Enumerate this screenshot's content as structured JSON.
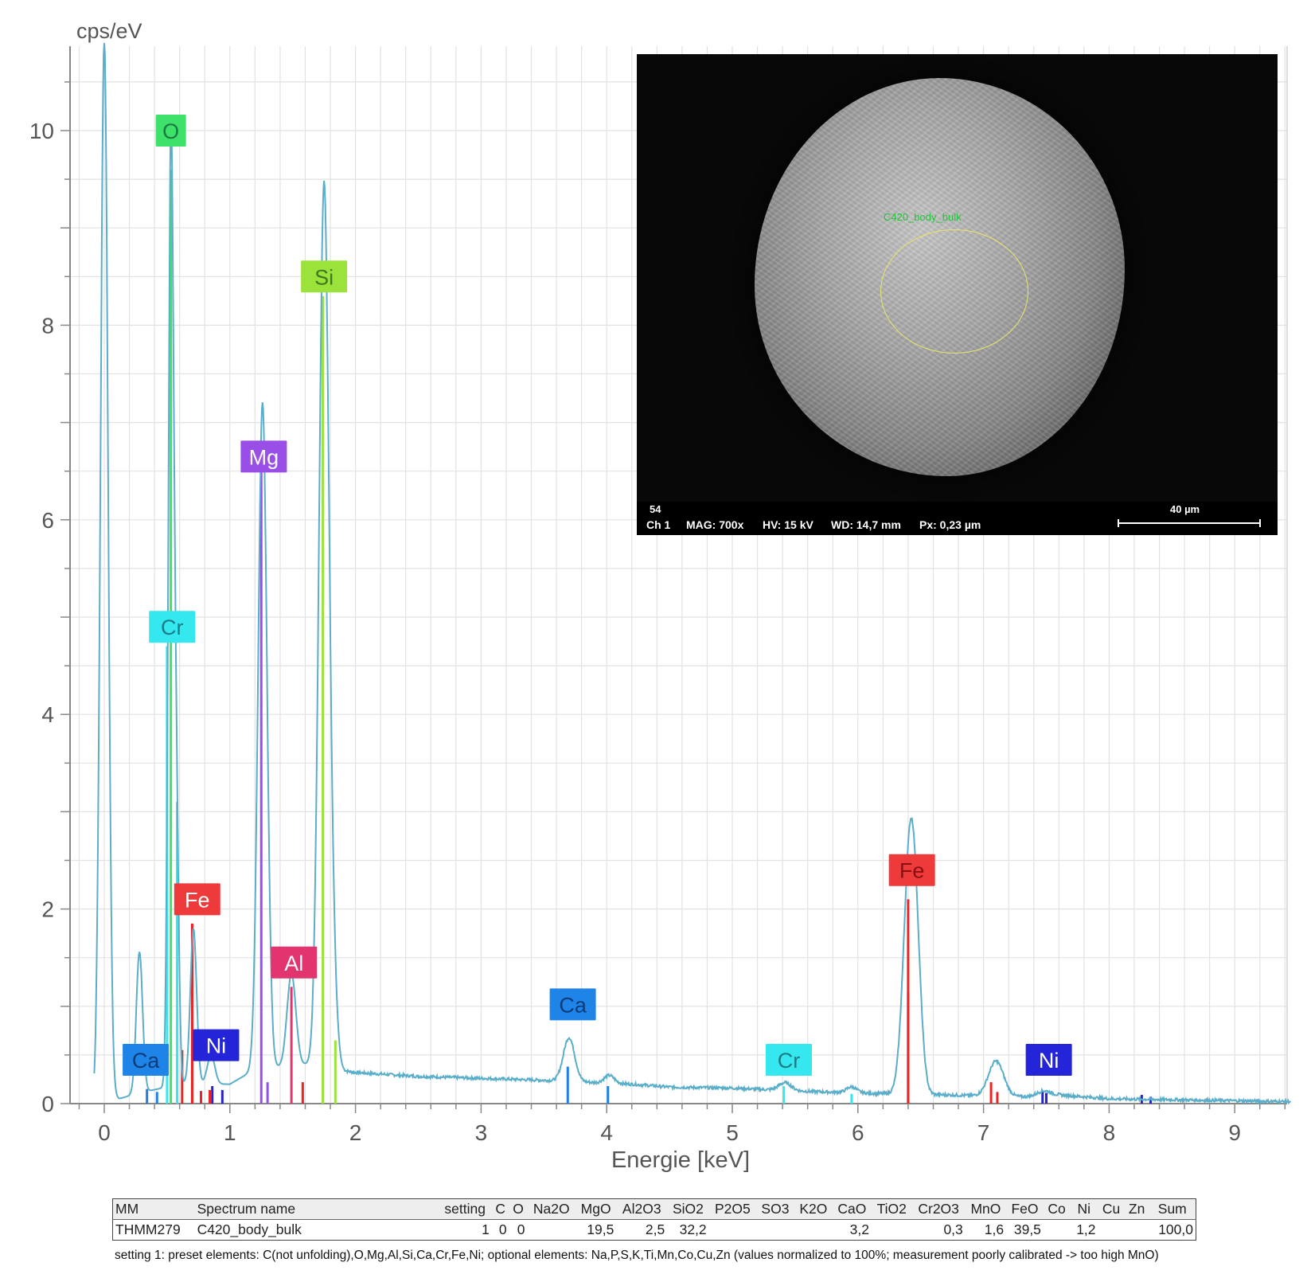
{
  "chart_data": {
    "type": "line",
    "ylabel": "cps/eV",
    "xlabel": "Energie [keV]",
    "xlim": [
      -0.2,
      9.45
    ],
    "ylim": [
      0,
      10.9
    ],
    "x_ticks": [
      "0",
      "1",
      "2",
      "3",
      "4",
      "5",
      "6",
      "7",
      "8",
      "9"
    ],
    "y_ticks": [
      "0",
      "2",
      "4",
      "6",
      "8",
      "10"
    ],
    "grid": true,
    "spectrum": {
      "color": "#5aaec9",
      "baseline": [
        [
          -0.08,
          0
        ],
        [
          0.02,
          0.05
        ],
        [
          0.12,
          0.05
        ],
        [
          0.25,
          0.1
        ],
        [
          0.6,
          0.2
        ],
        [
          1.0,
          0.2
        ],
        [
          1.2,
          0.35
        ],
        [
          1.6,
          0.4
        ],
        [
          2.0,
          0.32
        ],
        [
          2.5,
          0.28
        ],
        [
          3.0,
          0.26
        ],
        [
          3.5,
          0.24
        ],
        [
          4.2,
          0.2
        ],
        [
          4.5,
          0.17
        ],
        [
          5.0,
          0.16
        ],
        [
          5.5,
          0.13
        ],
        [
          6.0,
          0.11
        ],
        [
          6.3,
          0.1
        ],
        [
          6.7,
          0.09
        ],
        [
          7.3,
          0.07
        ],
        [
          7.6,
          0.09
        ],
        [
          8.0,
          0.05
        ],
        [
          8.5,
          0.04
        ],
        [
          9.0,
          0.03
        ],
        [
          9.45,
          0.02
        ]
      ],
      "peaks": [
        {
          "e": 0.0,
          "h": 10.9,
          "w": 0.03
        },
        {
          "e": 0.28,
          "h": 1.45,
          "w": 0.025
        },
        {
          "e": 0.53,
          "h": 9.5,
          "w": 0.02
        },
        {
          "e": 0.57,
          "h": 3.2,
          "w": 0.02
        },
        {
          "e": 0.71,
          "h": 1.6,
          "w": 0.025
        },
        {
          "e": 0.85,
          "h": 0.3,
          "w": 0.03
        },
        {
          "e": 1.26,
          "h": 6.85,
          "w": 0.035
        },
        {
          "e": 1.49,
          "h": 0.95,
          "w": 0.035
        },
        {
          "e": 1.75,
          "h": 9.1,
          "w": 0.04
        },
        {
          "e": 1.83,
          "h": 0.5,
          "w": 0.03
        },
        {
          "e": 3.7,
          "h": 0.45,
          "w": 0.045
        },
        {
          "e": 4.02,
          "h": 0.08,
          "w": 0.04
        },
        {
          "e": 5.42,
          "h": 0.08,
          "w": 0.05
        },
        {
          "e": 5.95,
          "h": 0.06,
          "w": 0.04
        },
        {
          "e": 6.41,
          "h": 2.2,
          "w": 0.05
        },
        {
          "e": 6.46,
          "h": 1.0,
          "w": 0.045
        },
        {
          "e": 7.1,
          "h": 0.36,
          "w": 0.06
        },
        {
          "e": 7.48,
          "h": 0.05,
          "w": 0.05
        }
      ]
    },
    "element_lines": [
      {
        "element": "O",
        "color": "#3ee26a",
        "lines": [
          [
            0.53,
            9.6
          ]
        ]
      },
      {
        "element": "Si",
        "color": "#9be23a",
        "lines": [
          [
            1.74,
            8.3
          ],
          [
            1.84,
            0.65
          ]
        ]
      },
      {
        "element": "Mg",
        "color": "#9a4ee8",
        "lines": [
          [
            1.25,
            6.55
          ],
          [
            1.3,
            0.22
          ]
        ]
      },
      {
        "element": "Cr",
        "color": "#35e8ef",
        "lines": [
          [
            0.5,
            4.7
          ],
          [
            0.58,
            3.1
          ],
          [
            5.41,
            0.18
          ],
          [
            5.95,
            0.1
          ]
        ]
      },
      {
        "element": "Fe",
        "color": "#ee2222",
        "lines": [
          [
            0.62,
            0.55
          ],
          [
            0.7,
            1.85
          ],
          [
            0.77,
            0.13
          ],
          [
            6.4,
            2.1
          ],
          [
            6.4,
            1.15
          ],
          [
            7.06,
            0.22
          ],
          [
            7.11,
            0.12
          ],
          [
            0.84,
            0.14
          ],
          [
            1.58,
            0.22
          ]
        ]
      },
      {
        "element": "Al",
        "color": "#e2346e",
        "lines": [
          [
            1.49,
            1.2
          ]
        ]
      },
      {
        "element": "Ca",
        "color": "#1f7fe6",
        "lines": [
          [
            3.69,
            0.38
          ],
          [
            4.01,
            0.18
          ],
          [
            0.34,
            0.15
          ],
          [
            0.42,
            0.12
          ]
        ]
      },
      {
        "element": "Ni",
        "color": "#2424d0",
        "lines": [
          [
            0.86,
            0.18
          ],
          [
            0.94,
            0.14
          ],
          [
            7.47,
            0.13
          ],
          [
            7.5,
            0.11
          ],
          [
            8.26,
            0.09
          ],
          [
            8.33,
            0.07
          ]
        ]
      }
    ],
    "labels": [
      {
        "text": "O",
        "e": 0.53,
        "y": 10.0,
        "color": "#3ee26a",
        "text_color": "#1a7a44"
      },
      {
        "text": "Si",
        "e": 1.75,
        "y": 8.5,
        "color": "#9be23a",
        "text_color": "#3a7a20"
      },
      {
        "text": "Mg",
        "e": 1.27,
        "y": 6.65,
        "color": "#9a4ee8",
        "text_color": "#ffffff"
      },
      {
        "text": "Cr",
        "e": 0.54,
        "y": 4.9,
        "color": "#35e8ef",
        "text_color": "#1a7d86"
      },
      {
        "text": "Fe",
        "e": 0.74,
        "y": 2.1,
        "color": "#ee3a3a",
        "text_color": "#ffffff"
      },
      {
        "text": "Al",
        "e": 1.51,
        "y": 1.45,
        "color": "#e2346e",
        "text_color": "#ffffff"
      },
      {
        "text": "Ca",
        "e": 0.33,
        "y": 0.45,
        "color": "#1f84e8",
        "text_color": "#0b3c7a"
      },
      {
        "text": "Ni",
        "e": 0.89,
        "y": 0.6,
        "color": "#2424d8",
        "text_color": "#ffffff"
      },
      {
        "text": "Ca",
        "e": 3.73,
        "y": 1.02,
        "color": "#1f84e8",
        "text_color": "#0b3c7a"
      },
      {
        "text": "Cr",
        "e": 5.45,
        "y": 0.45,
        "color": "#35e8ef",
        "text_color": "#1a7d86"
      },
      {
        "text": "Fe",
        "e": 6.43,
        "y": 2.4,
        "color": "#ee3a3a",
        "text_color": "#8a1010"
      },
      {
        "text": "Ni",
        "e": 7.52,
        "y": 0.45,
        "color": "#2424d8",
        "text_color": "#ffffff"
      }
    ]
  },
  "inset": {
    "roi_label": "C420_body_bulk",
    "image_number": "54",
    "channel": "Ch 1",
    "mag": "MAG: 700x",
    "hv": "HV: 15 kV",
    "wd": "WD: 14,7 mm",
    "px": "Px: 0,23 µm",
    "scale": "40 µm"
  },
  "results_table": {
    "headers": [
      "MM",
      "Spectrum name",
      "setting",
      "C",
      "O",
      "Na2O",
      "MgO",
      "Al2O3",
      "SiO2",
      "P2O5",
      "SO3",
      "K2O",
      "CaO",
      "TiO2",
      "Cr2O3",
      "MnO",
      "FeO",
      "Co",
      "Ni",
      "Cu",
      "Zn",
      "Sum"
    ],
    "rows": [
      [
        "THMM279",
        "C420_body_bulk",
        "1",
        "0",
        "0",
        "",
        "19,5",
        "2,5",
        "32,2",
        "",
        "",
        "",
        "3,2",
        "",
        "0,3",
        "1,6",
        "39,5",
        "",
        "1,2",
        "",
        "",
        "100,0"
      ]
    ]
  },
  "note": "setting 1: preset elements: C(not unfolding),O,Mg,Al,Si,Ca,Cr,Fe,Ni; optional elements: Na,P,S,K,Ti,Mn,Co,Cu,Zn (values normalized to 100%; measurement poorly calibrated -> too high MnO)"
}
